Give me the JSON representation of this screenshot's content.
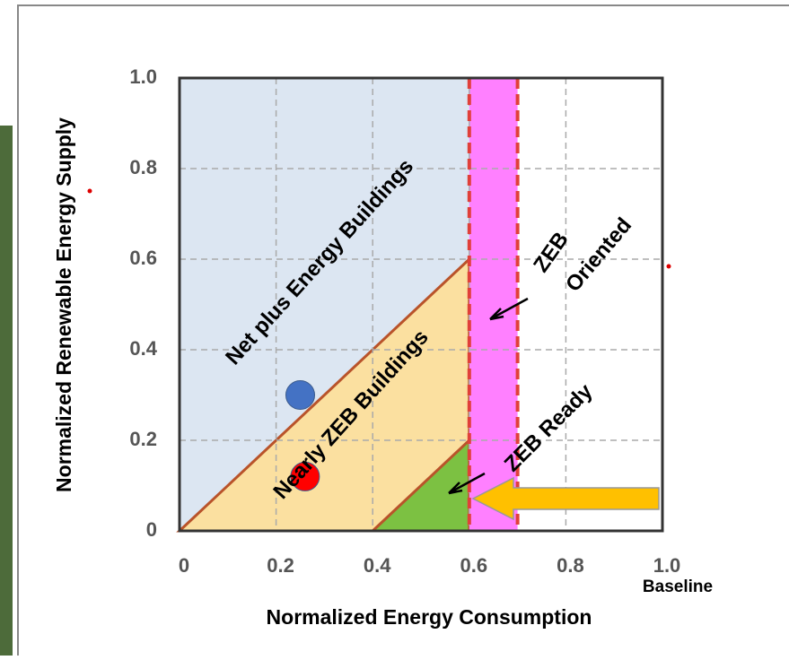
{
  "chart_data": {
    "type": "zeb",
    "x_label": "Normalized Energy Consumption",
    "y_label": "Normalized Renewable Energy Supply",
    "baseline_label": "Baseline",
    "xlim": [
      0,
      1
    ],
    "ylim": [
      0,
      1
    ],
    "xticks": [
      0,
      0.2,
      0.4,
      0.6,
      0.8,
      {
        "value": 1,
        "label": "1.0"
      }
    ],
    "yticks": [
      0,
      0.2,
      0.4,
      0.6,
      0.8,
      {
        "value": 1,
        "label": "1.0"
      }
    ],
    "grid": true,
    "regions": [
      {
        "label": "Net plus Energy Buildings",
        "color": "#dce6f2",
        "x": [
          0,
          0.6,
          0.6,
          0
        ],
        "y": [
          0,
          0.6,
          1,
          1
        ]
      },
      {
        "label": "Nearly ZEB Buildings",
        "color": "#fbe0a0",
        "x": [
          0,
          0.6,
          0.6
        ],
        "y": [
          0,
          0.6,
          0
        ]
      },
      {
        "label": "ZEB Ready",
        "color": "#7cc142",
        "x": [
          0.4,
          0.6,
          0.6
        ],
        "y": [
          0,
          0.2,
          0
        ]
      },
      {
        "label": [
          "ZEB",
          "Oriented"
        ],
        "color": "#ff80ff",
        "x": [
          0.6,
          0.7,
          0.7,
          0.6
        ],
        "y": [
          0,
          0,
          1,
          1
        ]
      }
    ],
    "dashed_lines": {
      "color": "#e0403a",
      "x": [
        0.6,
        0.7
      ]
    },
    "points": [
      {
        "color": "#4472c4",
        "x": 0.25,
        "y": 0.3
      },
      {
        "color": "#ff0000",
        "x": 0.26,
        "y": 0.12
      }
    ]
  }
}
